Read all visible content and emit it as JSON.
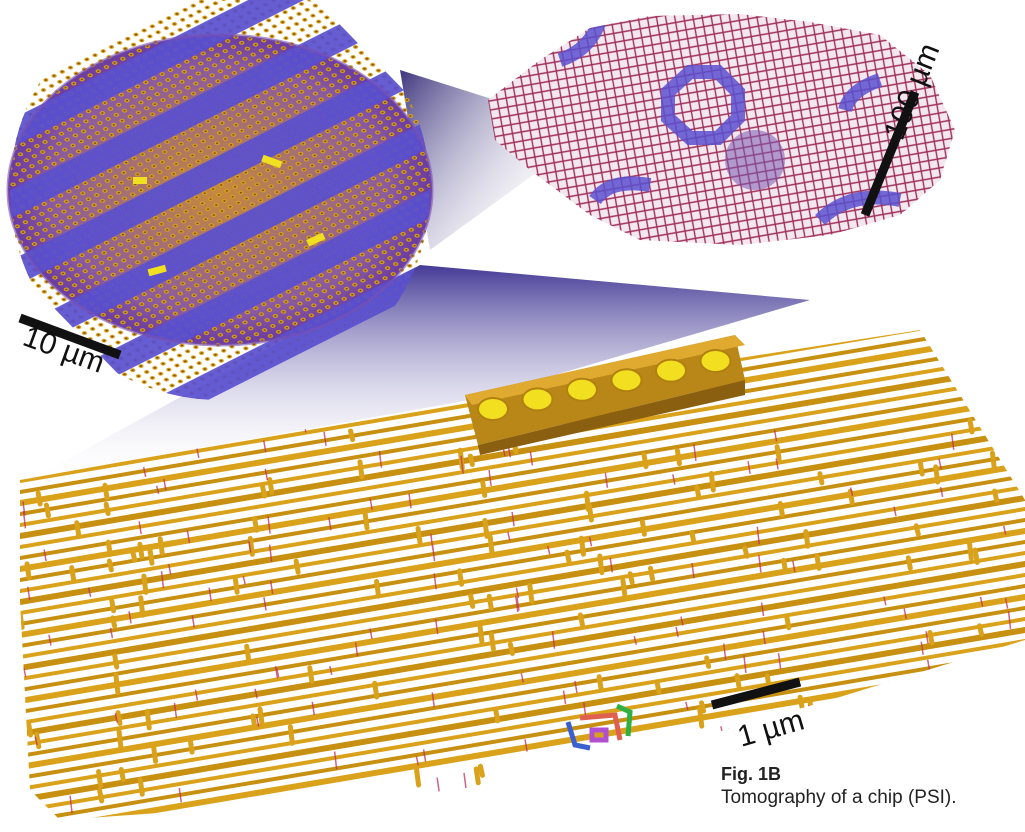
{
  "figure": {
    "scale_large": "100 µm",
    "scale_medium": "10 µm",
    "scale_small": "1 µm",
    "caption_title": "Fig. 1B",
    "caption_text": "Tomography of a chip (PSI)."
  },
  "colors": {
    "copper": "#d9a21a",
    "copper_dark": "#9a6a10",
    "magenta": "#c0305a",
    "blue": "#5a50d0",
    "purple": "#5b3fa0",
    "highlight": "#f0e020"
  }
}
